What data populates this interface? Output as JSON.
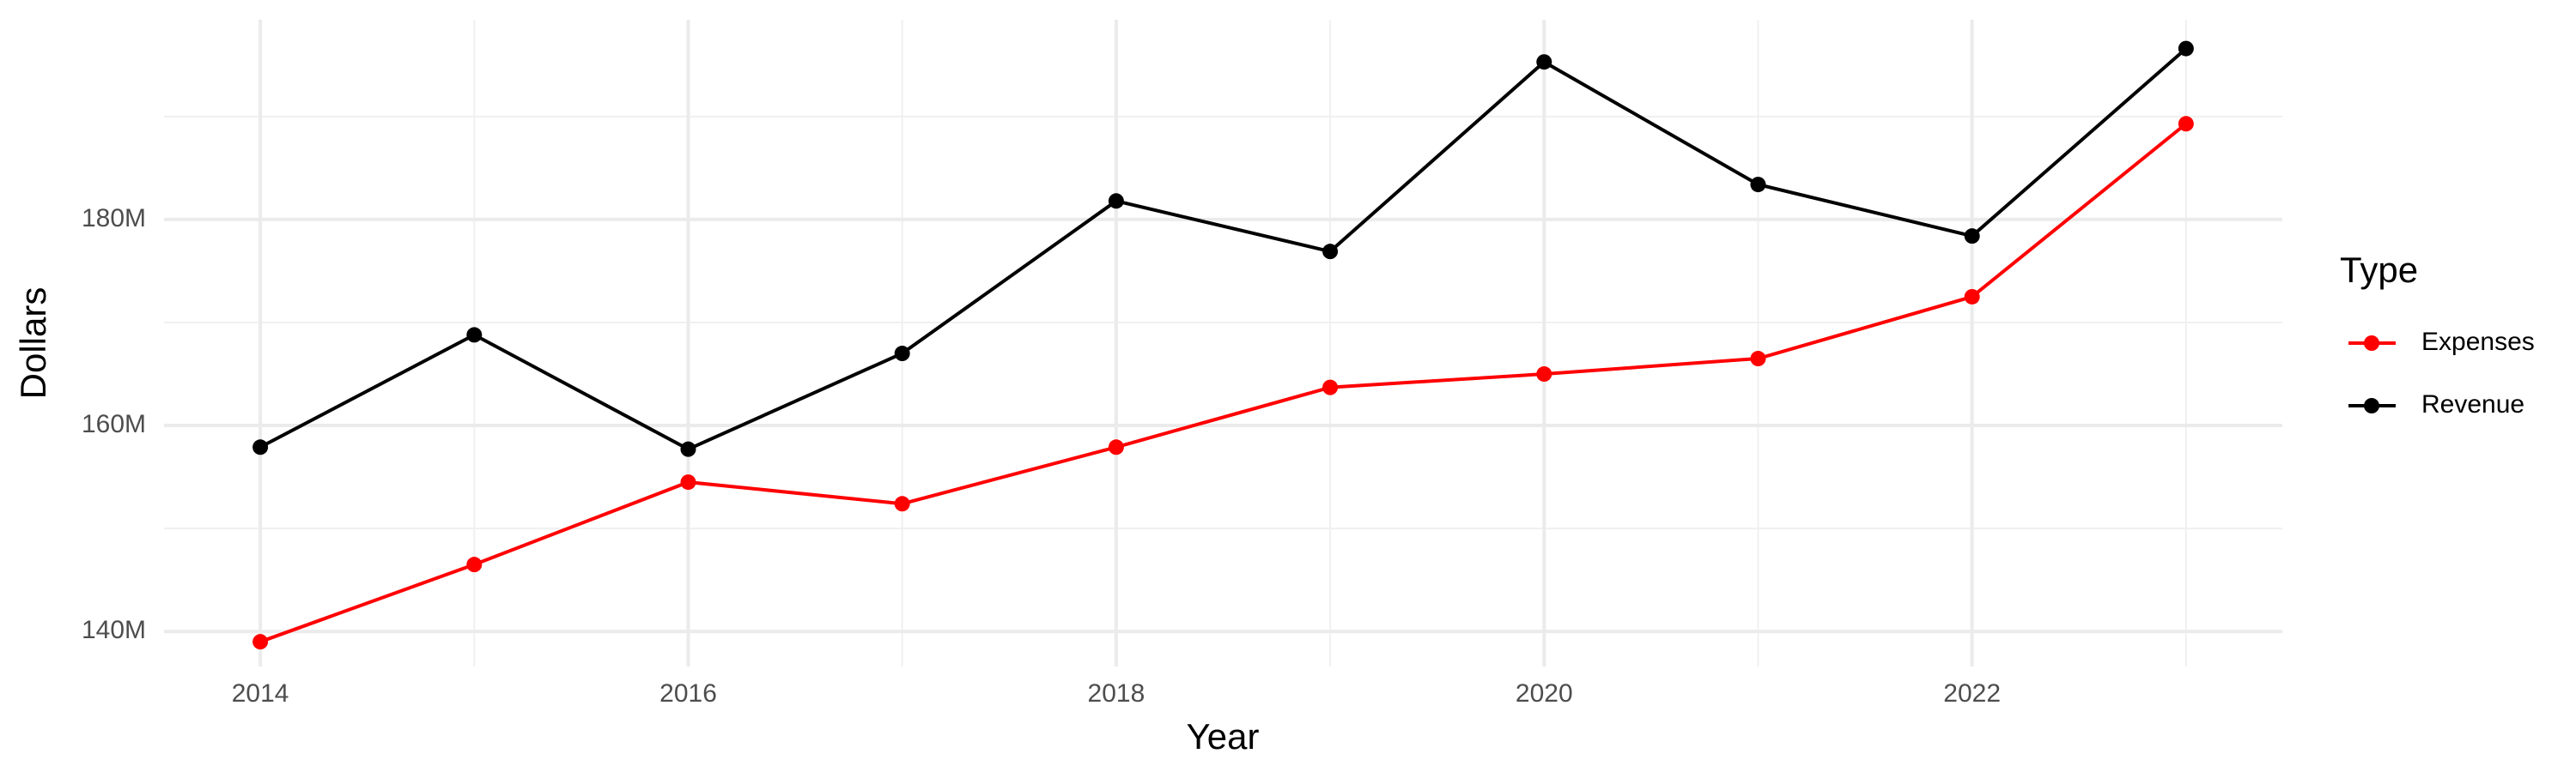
{
  "chart_data": {
    "type": "line",
    "x_label": "Year",
    "y_label": "Dollars",
    "legend_title": "Type",
    "x": [
      2014,
      2015,
      2016,
      2017,
      2018,
      2019,
      2020,
      2021,
      2022,
      2023
    ],
    "series": [
      {
        "name": "Expenses",
        "color": "#ff0000",
        "values": [
          139000000,
          146500000,
          154500000,
          152400000,
          157900000,
          163700000,
          165000000,
          166500000,
          172500000,
          189300000
        ]
      },
      {
        "name": "Revenue",
        "color": "#000000",
        "values": [
          157900000,
          168800000,
          157700000,
          167000000,
          181800000,
          176900000,
          195300000,
          183400000,
          178400000,
          196600000
        ]
      }
    ],
    "xlim": [
      2013.55,
      2023.45
    ],
    "xticks": [
      2014,
      2016,
      2018,
      2020,
      2022
    ],
    "xminor": [
      2015,
      2017,
      2019,
      2021,
      2023
    ],
    "ylim": [
      136600000,
      199400000
    ],
    "yticks": [
      {
        "value": 140000000,
        "label": "140M"
      },
      {
        "value": 160000000,
        "label": "160M"
      },
      {
        "value": 180000000,
        "label": "180M"
      }
    ],
    "yminor": [
      150000000,
      170000000,
      190000000
    ],
    "grid": true,
    "legend": "right"
  }
}
